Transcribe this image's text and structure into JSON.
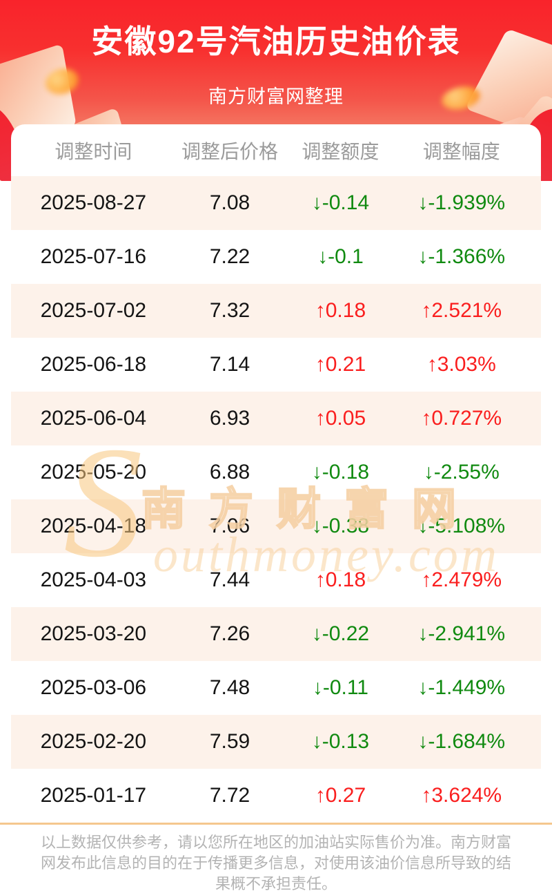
{
  "header": {
    "title": "安徽92号汽油历史油价表",
    "subtitle": "南方财富网整理"
  },
  "table": {
    "columns": [
      "调整时间",
      "调整后价格",
      "调整额度",
      "调整幅度"
    ],
    "rows": [
      {
        "date": "2025-08-27",
        "price": "7.08",
        "change": "-0.14",
        "percent": "-1.939%",
        "direction": "down"
      },
      {
        "date": "2025-07-16",
        "price": "7.22",
        "change": "-0.1",
        "percent": "-1.366%",
        "direction": "down"
      },
      {
        "date": "2025-07-02",
        "price": "7.32",
        "change": "0.18",
        "percent": "2.521%",
        "direction": "up"
      },
      {
        "date": "2025-06-18",
        "price": "7.14",
        "change": "0.21",
        "percent": "3.03%",
        "direction": "up"
      },
      {
        "date": "2025-06-04",
        "price": "6.93",
        "change": "0.05",
        "percent": "0.727%",
        "direction": "up"
      },
      {
        "date": "2025-05-20",
        "price": "6.88",
        "change": "-0.18",
        "percent": "-2.55%",
        "direction": "down"
      },
      {
        "date": "2025-04-18",
        "price": "7.06",
        "change": "-0.38",
        "percent": "-5.108%",
        "direction": "down"
      },
      {
        "date": "2025-04-03",
        "price": "7.44",
        "change": "0.18",
        "percent": "2.479%",
        "direction": "up"
      },
      {
        "date": "2025-03-20",
        "price": "7.26",
        "change": "-0.22",
        "percent": "-2.941%",
        "direction": "down"
      },
      {
        "date": "2025-03-06",
        "price": "7.48",
        "change": "-0.11",
        "percent": "-1.449%",
        "direction": "down"
      },
      {
        "date": "2025-02-20",
        "price": "7.59",
        "change": "-0.13",
        "percent": "-1.684%",
        "direction": "down"
      },
      {
        "date": "2025-01-17",
        "price": "7.72",
        "change": "0.27",
        "percent": "3.624%",
        "direction": "up"
      }
    ]
  },
  "chart_data": {
    "type": "table",
    "title": "安徽92号汽油历史油价表",
    "columns": [
      "调整时间",
      "调整后价格",
      "调整额度",
      "调整幅度"
    ],
    "rows": [
      [
        "2025-08-27",
        7.08,
        -0.14,
        "-1.939%"
      ],
      [
        "2025-07-16",
        7.22,
        -0.1,
        "-1.366%"
      ],
      [
        "2025-07-02",
        7.32,
        0.18,
        "2.521%"
      ],
      [
        "2025-06-18",
        7.14,
        0.21,
        "3.03%"
      ],
      [
        "2025-06-04",
        6.93,
        0.05,
        "0.727%"
      ],
      [
        "2025-05-20",
        6.88,
        -0.18,
        "-2.55%"
      ],
      [
        "2025-04-18",
        7.06,
        -0.38,
        "-5.108%"
      ],
      [
        "2025-04-03",
        7.44,
        0.18,
        "2.479%"
      ],
      [
        "2025-03-20",
        7.26,
        -0.22,
        "-2.941%"
      ],
      [
        "2025-03-06",
        7.48,
        -0.11,
        "-1.449%"
      ],
      [
        "2025-02-20",
        7.59,
        -0.13,
        "-1.684%"
      ],
      [
        "2025-01-17",
        7.72,
        0.27,
        "3.624%"
      ]
    ]
  },
  "icons": {
    "up_arrow": "↑",
    "down_arrow": "↓"
  },
  "watermark": {
    "cn": "南方财富网",
    "en_initial": "S",
    "en_rest": "outhmoney.com"
  },
  "footer": {
    "disclaimer": "以上数据仅供参考，请以您所在地区的加油站实际售价为准。南方财富网发布此信息的目的在于传播更多信息，对使用该油价信息所导致的结果概不承担责任。"
  },
  "colors": {
    "banner_red_top": "#f9232b",
    "banner_red_bottom": "#f4826a",
    "up_red": "#fa1e1e",
    "down_green": "#108a10",
    "row_stripe_pink": "#fdf2ea",
    "header_text_gray": "#9b9b9b",
    "divider_orange": "#f5c78e",
    "disclaimer_gray": "#b3b3b3"
  }
}
